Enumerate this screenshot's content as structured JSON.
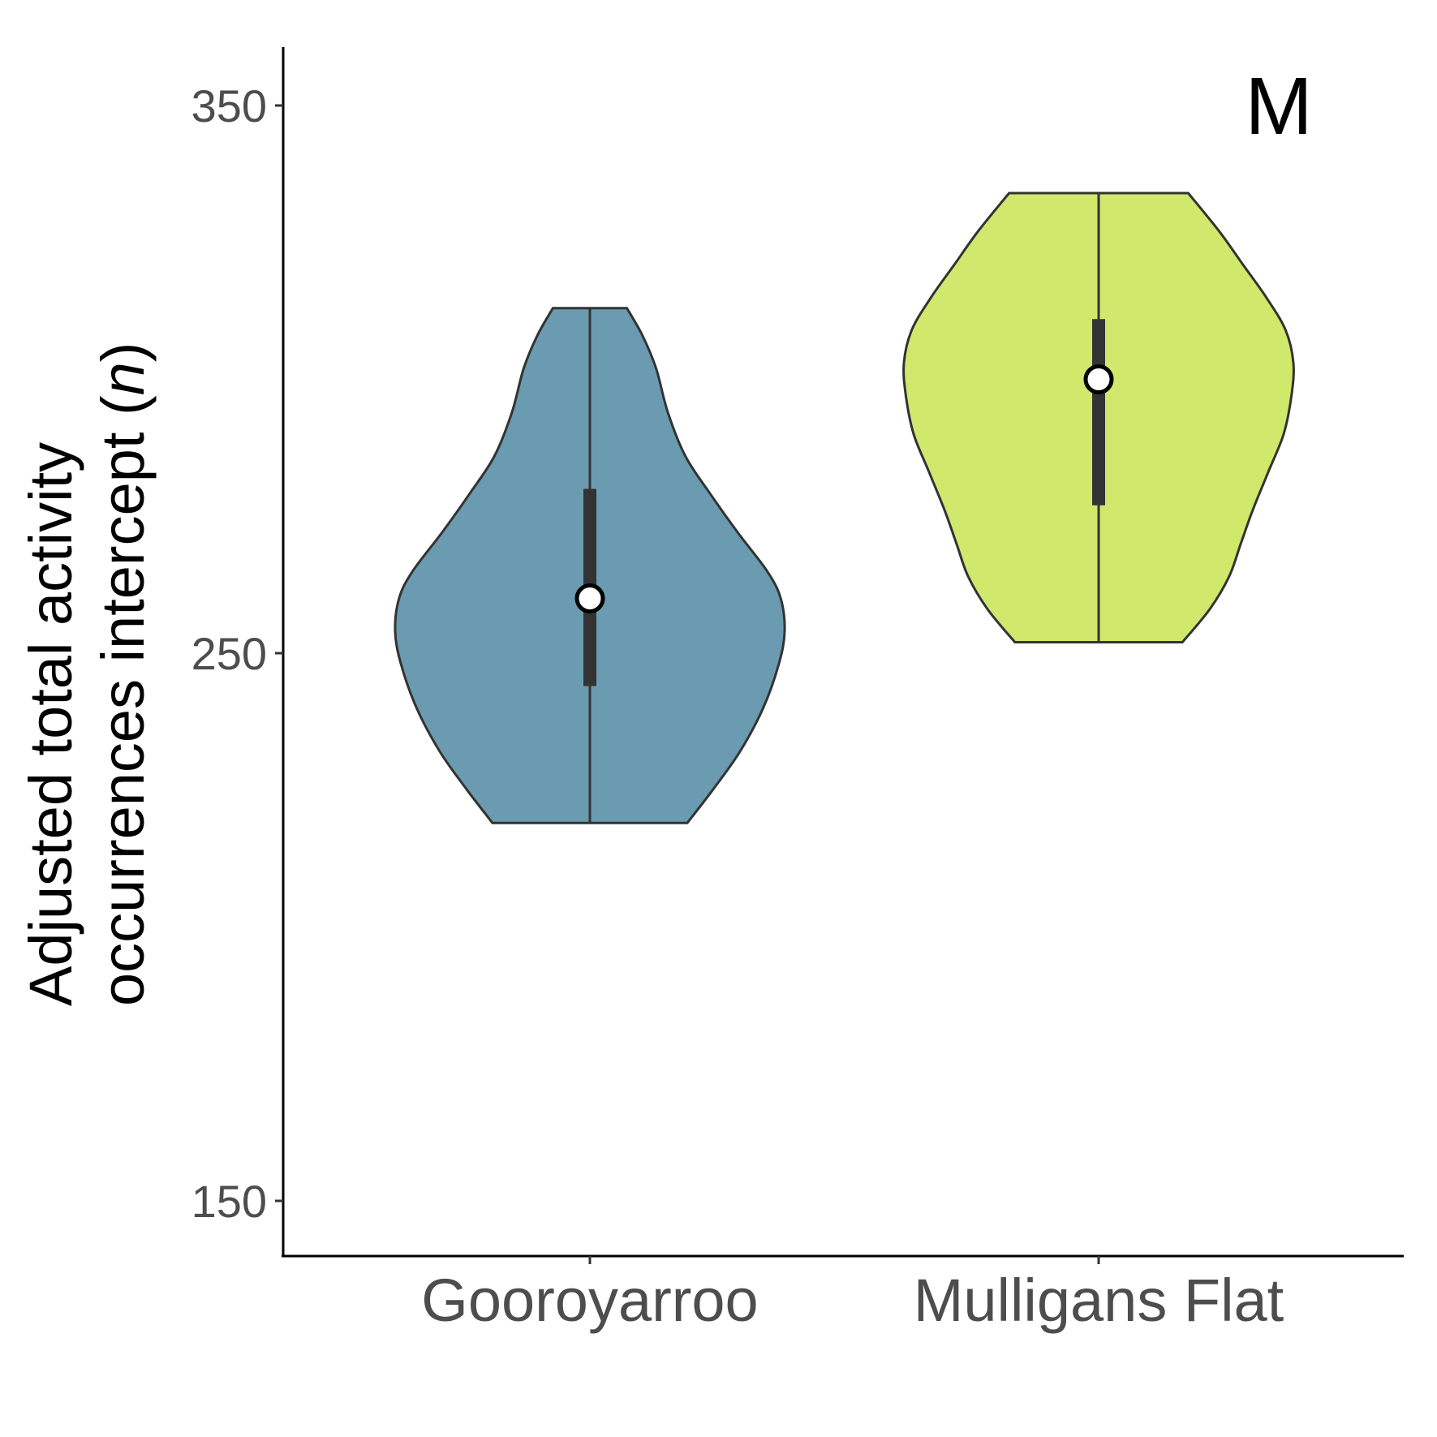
{
  "chart_data": {
    "type": "violin",
    "panel_label": "M",
    "ylabel_line1": "Adjusted total activity",
    "ylabel_line2_main": "occurrences intercept (",
    "ylabel_line2_italic": "n",
    "ylabel_line2_end": ")",
    "xlabel": "",
    "ylim": [
      140,
      360
    ],
    "yticks": [
      150,
      250,
      350
    ],
    "ytick_labels": [
      "150",
      "250",
      "350"
    ],
    "grid": false,
    "legend": "none",
    "categories": [
      "Gooroyarroo",
      "Mulligans Flat"
    ],
    "groups": [
      {
        "name": "Gooroyarroo",
        "color": "#6b9bb0",
        "min": 219,
        "max": 313,
        "median": 260,
        "q1": 244,
        "q3": 280,
        "density_profile": [
          [
            219,
            0.5
          ],
          [
            225,
            0.63
          ],
          [
            232,
            0.77
          ],
          [
            240,
            0.89
          ],
          [
            248,
            0.97
          ],
          [
            254,
            1.0
          ],
          [
            260,
            0.98
          ],
          [
            265,
            0.91
          ],
          [
            272,
            0.76
          ],
          [
            279,
            0.62
          ],
          [
            286,
            0.49
          ],
          [
            294,
            0.4
          ],
          [
            302,
            0.34
          ],
          [
            308,
            0.27
          ],
          [
            313,
            0.19
          ]
        ]
      },
      {
        "name": "Mulligans Flat",
        "color": "#d0e86b",
        "min": 252,
        "max": 334,
        "median": 300,
        "q1": 277,
        "q3": 311,
        "density_profile": [
          [
            252,
            0.43
          ],
          [
            258,
            0.57
          ],
          [
            264,
            0.67
          ],
          [
            270,
            0.73
          ],
          [
            276,
            0.79
          ],
          [
            283,
            0.87
          ],
          [
            290,
            0.95
          ],
          [
            297,
            0.99
          ],
          [
            303,
            1.0
          ],
          [
            309,
            0.96
          ],
          [
            315,
            0.86
          ],
          [
            321,
            0.74
          ],
          [
            327,
            0.62
          ],
          [
            334,
            0.46
          ]
        ]
      }
    ]
  }
}
